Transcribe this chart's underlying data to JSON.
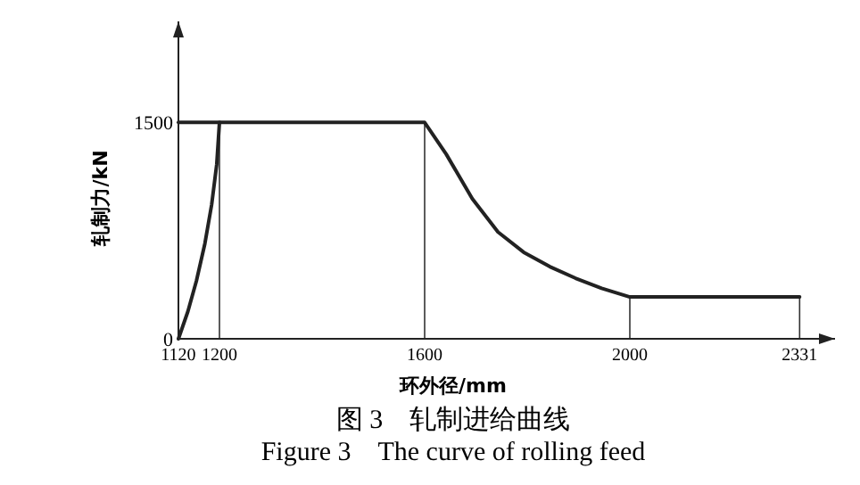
{
  "chart_data": {
    "type": "line",
    "xlabel": "环外径/mm",
    "ylabel": "轧制力/kN",
    "annotations": [
      "图 3　轧制进给曲线",
      "Figure 3　The curve of rolling feed"
    ],
    "x": [
      1120,
      1138.5,
      1155,
      1171.6,
      1184.8,
      1194.7,
      1200,
      1600,
      1642,
      1693,
      1743,
      1793,
      1844,
      1894,
      1945,
      2000,
      2331
    ],
    "series": [
      {
        "color": "#222222",
        "values": [
          0,
          190,
          400,
          660,
          930,
          1210,
          1500,
          1500,
          1280,
          970,
          740,
          600,
          500,
          420,
          350,
          290,
          290
        ]
      },
      {
        "color": "#222222",
        "x": [
          1120,
          1200
        ],
        "values": [
          1500,
          1500
        ]
      }
    ],
    "xlim": [
      1120,
      2400
    ],
    "ylim": [
      0,
      2200
    ],
    "xticks": [
      1120,
      1200,
      1600,
      2000,
      2331
    ],
    "yticks": [
      0,
      1500
    ],
    "ref_lines": [
      {
        "axis": "x",
        "value": 1200
      },
      {
        "axis": "x",
        "value": 1600
      },
      {
        "axis": "x",
        "value": 2000
      },
      {
        "axis": "x",
        "value": 2331
      }
    ],
    "grid": false,
    "marker": "none",
    "line_style": "solid"
  }
}
